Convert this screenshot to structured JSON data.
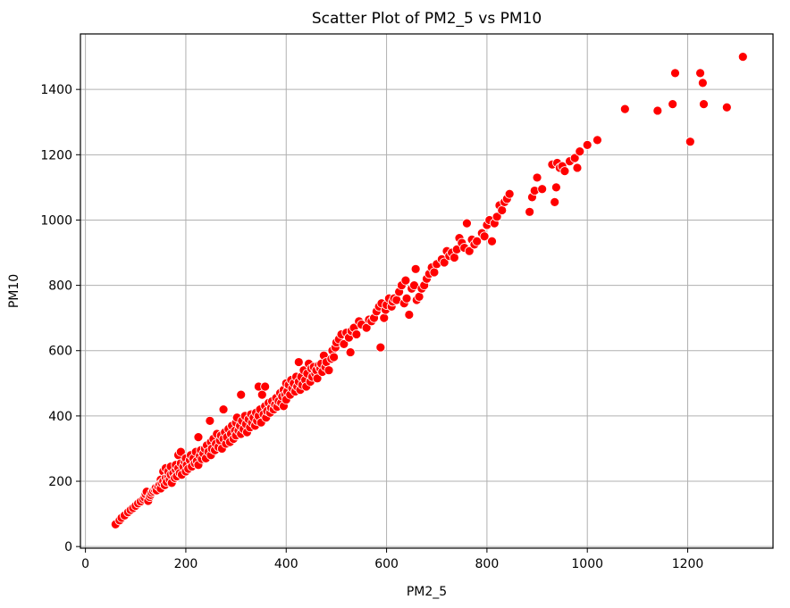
{
  "chart_data": {
    "type": "scatter",
    "title": "Scatter Plot of PM2_5 vs PM10",
    "xlabel": "PM2_5",
    "ylabel": "PM10",
    "xlim": [
      -10,
      1370
    ],
    "ylim": [
      -5,
      1570
    ],
    "xticks": [
      0,
      200,
      400,
      600,
      800,
      1000,
      1200
    ],
    "yticks": [
      0,
      200,
      400,
      600,
      800,
      1000,
      1200,
      1400
    ],
    "grid": true,
    "marker_color": "#ff0000",
    "points": [
      [
        60,
        68
      ],
      [
        68,
        80
      ],
      [
        72,
        88
      ],
      [
        78,
        95
      ],
      [
        85,
        105
      ],
      [
        90,
        112
      ],
      [
        95,
        118
      ],
      [
        100,
        125
      ],
      [
        105,
        132
      ],
      [
        110,
        138
      ],
      [
        115,
        145
      ],
      [
        118,
        150
      ],
      [
        120,
        160
      ],
      [
        122,
        168
      ],
      [
        125,
        140
      ],
      [
        128,
        152
      ],
      [
        130,
        158
      ],
      [
        132,
        165
      ],
      [
        135,
        170
      ],
      [
        138,
        175
      ],
      [
        140,
        180
      ],
      [
        142,
        172
      ],
      [
        145,
        185
      ],
      [
        148,
        190
      ],
      [
        150,
        178
      ],
      [
        150,
        205
      ],
      [
        152,
        195
      ],
      [
        155,
        200
      ],
      [
        155,
        230
      ],
      [
        158,
        188
      ],
      [
        160,
        210
      ],
      [
        160,
        240
      ],
      [
        162,
        198
      ],
      [
        165,
        215
      ],
      [
        165,
        230
      ],
      [
        168,
        205
      ],
      [
        170,
        220
      ],
      [
        170,
        245
      ],
      [
        172,
        195
      ],
      [
        175,
        225
      ],
      [
        178,
        210
      ],
      [
        180,
        235
      ],
      [
        180,
        250
      ],
      [
        182,
        215
      ],
      [
        185,
        240
      ],
      [
        185,
        280
      ],
      [
        188,
        225
      ],
      [
        190,
        255
      ],
      [
        190,
        290
      ],
      [
        192,
        220
      ],
      [
        195,
        245
      ],
      [
        198,
        260
      ],
      [
        200,
        230
      ],
      [
        200,
        270
      ],
      [
        202,
        250
      ],
      [
        205,
        238
      ],
      [
        208,
        265
      ],
      [
        210,
        280
      ],
      [
        212,
        245
      ],
      [
        215,
        270
      ],
      [
        218,
        255
      ],
      [
        220,
        290
      ],
      [
        222,
        262
      ],
      [
        225,
        335
      ],
      [
        225,
        250
      ],
      [
        228,
        278
      ],
      [
        230,
        295
      ],
      [
        232,
        268
      ],
      [
        235,
        285
      ],
      [
        238,
        300
      ],
      [
        240,
        270
      ],
      [
        242,
        310
      ],
      [
        245,
        290
      ],
      [
        248,
        385
      ],
      [
        250,
        280
      ],
      [
        250,
        320
      ],
      [
        252,
        300
      ],
      [
        255,
        330
      ],
      [
        258,
        295
      ],
      [
        260,
        315
      ],
      [
        262,
        345
      ],
      [
        265,
        305
      ],
      [
        268,
        325
      ],
      [
        270,
        340
      ],
      [
        272,
        300
      ],
      [
        275,
        420
      ],
      [
        275,
        330
      ],
      [
        278,
        350
      ],
      [
        280,
        315
      ],
      [
        282,
        335
      ],
      [
        285,
        360
      ],
      [
        288,
        320
      ],
      [
        290,
        345
      ],
      [
        292,
        370
      ],
      [
        295,
        330
      ],
      [
        298,
        355
      ],
      [
        300,
        380
      ],
      [
        300,
        340
      ],
      [
        302,
        395
      ],
      [
        305,
        355
      ],
      [
        308,
        370
      ],
      [
        310,
        465
      ],
      [
        310,
        345
      ],
      [
        312,
        385
      ],
      [
        315,
        360
      ],
      [
        318,
        400
      ],
      [
        320,
        375
      ],
      [
        322,
        350
      ],
      [
        325,
        390
      ],
      [
        328,
        365
      ],
      [
        330,
        405
      ],
      [
        332,
        380
      ],
      [
        335,
        395
      ],
      [
        338,
        370
      ],
      [
        340,
        410
      ],
      [
        342,
        385
      ],
      [
        345,
        490
      ],
      [
        345,
        400
      ],
      [
        348,
        420
      ],
      [
        350,
        380
      ],
      [
        352,
        465
      ],
      [
        355,
        405
      ],
      [
        358,
        490
      ],
      [
        358,
        430
      ],
      [
        360,
        395
      ],
      [
        362,
        415
      ],
      [
        365,
        440
      ],
      [
        368,
        410
      ],
      [
        370,
        425
      ],
      [
        372,
        445
      ],
      [
        375,
        420
      ],
      [
        378,
        435
      ],
      [
        380,
        455
      ],
      [
        382,
        428
      ],
      [
        385,
        445
      ],
      [
        388,
        470
      ],
      [
        390,
        440
      ],
      [
        392,
        460
      ],
      [
        395,
        480
      ],
      [
        395,
        430
      ],
      [
        398,
        465
      ],
      [
        400,
        450
      ],
      [
        400,
        500
      ],
      [
        402,
        475
      ],
      [
        405,
        495
      ],
      [
        408,
        465
      ],
      [
        410,
        510
      ],
      [
        412,
        485
      ],
      [
        415,
        500
      ],
      [
        418,
        475
      ],
      [
        420,
        520
      ],
      [
        422,
        490
      ],
      [
        425,
        565
      ],
      [
        425,
        505
      ],
      [
        428,
        480
      ],
      [
        430,
        520
      ],
      [
        432,
        495
      ],
      [
        435,
        540
      ],
      [
        438,
        510
      ],
      [
        440,
        490
      ],
      [
        442,
        530
      ],
      [
        445,
        560
      ],
      [
        448,
        505
      ],
      [
        450,
        545
      ],
      [
        452,
        520
      ],
      [
        455,
        550
      ],
      [
        458,
        530
      ],
      [
        460,
        540
      ],
      [
        462,
        515
      ],
      [
        465,
        555
      ],
      [
        468,
        545
      ],
      [
        470,
        560
      ],
      [
        472,
        535
      ],
      [
        475,
        585
      ],
      [
        478,
        550
      ],
      [
        480,
        565
      ],
      [
        485,
        540
      ],
      [
        490,
        575
      ],
      [
        492,
        600
      ],
      [
        495,
        580
      ],
      [
        498,
        610
      ],
      [
        500,
        625
      ],
      [
        505,
        635
      ],
      [
        510,
        650
      ],
      [
        515,
        620
      ],
      [
        520,
        655
      ],
      [
        525,
        640
      ],
      [
        528,
        595
      ],
      [
        530,
        660
      ],
      [
        535,
        670
      ],
      [
        540,
        650
      ],
      [
        545,
        690
      ],
      [
        550,
        680
      ],
      [
        560,
        670
      ],
      [
        565,
        695
      ],
      [
        570,
        690
      ],
      [
        575,
        700
      ],
      [
        580,
        720
      ],
      [
        585,
        735
      ],
      [
        588,
        610
      ],
      [
        590,
        745
      ],
      [
        595,
        700
      ],
      [
        598,
        725
      ],
      [
        600,
        740
      ],
      [
        605,
        760
      ],
      [
        610,
        735
      ],
      [
        612,
        750
      ],
      [
        615,
        760
      ],
      [
        620,
        755
      ],
      [
        625,
        780
      ],
      [
        630,
        800
      ],
      [
        635,
        745
      ],
      [
        638,
        815
      ],
      [
        640,
        760
      ],
      [
        645,
        710
      ],
      [
        650,
        790
      ],
      [
        655,
        800
      ],
      [
        658,
        850
      ],
      [
        660,
        755
      ],
      [
        665,
        765
      ],
      [
        670,
        790
      ],
      [
        675,
        800
      ],
      [
        680,
        820
      ],
      [
        685,
        835
      ],
      [
        690,
        855
      ],
      [
        695,
        840
      ],
      [
        700,
        865
      ],
      [
        710,
        880
      ],
      [
        715,
        870
      ],
      [
        720,
        905
      ],
      [
        725,
        890
      ],
      [
        730,
        900
      ],
      [
        735,
        885
      ],
      [
        740,
        910
      ],
      [
        745,
        945
      ],
      [
        750,
        930
      ],
      [
        755,
        915
      ],
      [
        760,
        990
      ],
      [
        765,
        905
      ],
      [
        770,
        940
      ],
      [
        775,
        925
      ],
      [
        780,
        935
      ],
      [
        790,
        960
      ],
      [
        795,
        950
      ],
      [
        800,
        985
      ],
      [
        805,
        1000
      ],
      [
        810,
        935
      ],
      [
        815,
        990
      ],
      [
        820,
        1010
      ],
      [
        825,
        1045
      ],
      [
        830,
        1030
      ],
      [
        835,
        1055
      ],
      [
        840,
        1065
      ],
      [
        845,
        1080
      ],
      [
        885,
        1025
      ],
      [
        890,
        1070
      ],
      [
        895,
        1090
      ],
      [
        900,
        1130
      ],
      [
        910,
        1095
      ],
      [
        930,
        1170
      ],
      [
        935,
        1055
      ],
      [
        938,
        1100
      ],
      [
        940,
        1175
      ],
      [
        945,
        1160
      ],
      [
        950,
        1165
      ],
      [
        955,
        1150
      ],
      [
        965,
        1180
      ],
      [
        975,
        1190
      ],
      [
        980,
        1160
      ],
      [
        985,
        1210
      ],
      [
        1000,
        1230
      ],
      [
        1020,
        1245
      ],
      [
        1075,
        1340
      ],
      [
        1140,
        1335
      ],
      [
        1170,
        1355
      ],
      [
        1175,
        1450
      ],
      [
        1205,
        1240
      ],
      [
        1225,
        1450
      ],
      [
        1230,
        1420
      ],
      [
        1232,
        1355
      ],
      [
        1278,
        1345
      ],
      [
        1310,
        1500
      ]
    ]
  }
}
